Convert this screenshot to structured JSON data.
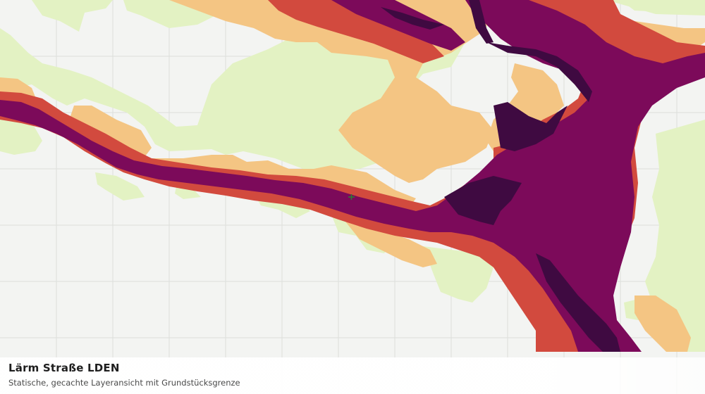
{
  "layer": {
    "title": "Lärm Straße LDEN",
    "subtitle": "Statische, gecachte Layeransicht mit Grundstücksgrenze"
  },
  "colors": {
    "background": "#f3f4f2",
    "grid": "#dcdedb",
    "band_light": "#e3f2c3",
    "band_medium": "#f4c583",
    "band_high": "#d24a3e",
    "band_very_high": "#7c0a5a",
    "band_extreme": "#3f0a41",
    "parcel_marker": "#2e7d32"
  }
}
